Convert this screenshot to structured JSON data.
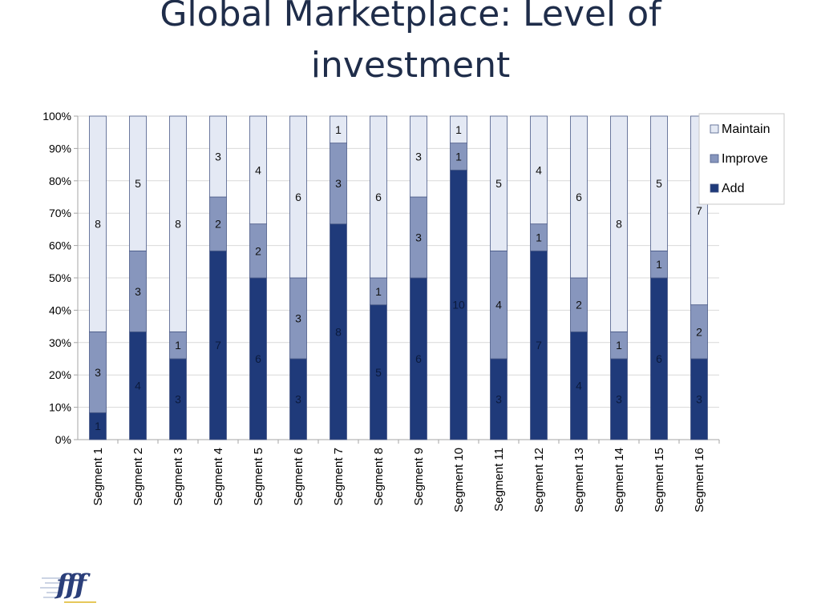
{
  "title_line1": "Global Marketplace: Level of",
  "title_line2": "investment",
  "logo": {
    "text": "fff"
  },
  "chart_data": {
    "type": "bar",
    "stacked": true,
    "normalized": true,
    "title": "Global Marketplace: Level of investment",
    "categories": [
      "Segment 1",
      "Segment 2",
      "Segment 3",
      "Segment 4",
      "Segment 5",
      "Segment 6",
      "Segment 7",
      "Segment 8",
      "Segment 9",
      "Segment 10",
      "Segment 11",
      "Segment 12",
      "Segment 13",
      "Segment 14",
      "Segment 15",
      "Segment 16"
    ],
    "series": [
      {
        "name": "Add",
        "color": "#1f3a7a",
        "values": [
          1,
          4,
          3,
          7,
          6,
          3,
          8,
          5,
          6,
          10,
          3,
          7,
          4,
          3,
          6,
          3
        ]
      },
      {
        "name": "Improve",
        "color": "#8796bd",
        "values": [
          3,
          3,
          1,
          2,
          2,
          3,
          3,
          1,
          3,
          1,
          4,
          1,
          2,
          1,
          1,
          2
        ]
      },
      {
        "name": "Maintain",
        "color": "#e4e9f4",
        "values": [
          8,
          5,
          8,
          3,
          4,
          6,
          1,
          6,
          3,
          1,
          5,
          4,
          6,
          8,
          5,
          7
        ]
      }
    ],
    "yticks": [
      "0%",
      "10%",
      "20%",
      "30%",
      "40%",
      "50%",
      "60%",
      "70%",
      "80%",
      "90%",
      "100%"
    ],
    "ylim": [
      0,
      100
    ],
    "grid": true,
    "legend_position": "right",
    "legend_order": [
      "Maintain",
      "Improve",
      "Add"
    ]
  }
}
